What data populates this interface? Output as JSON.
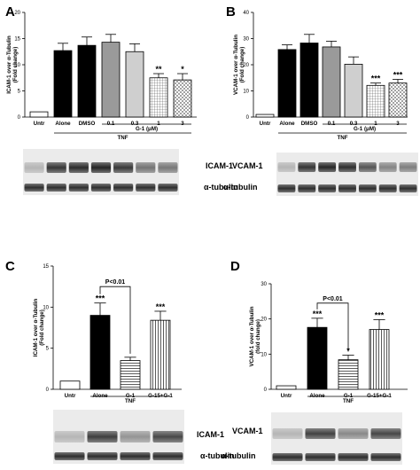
{
  "chart_data": [
    {
      "panel": "A",
      "type": "bar",
      "ylabel": "ICAM-1 over α-Tubulin (Fold change)",
      "ylim": [
        0,
        20
      ],
      "yticks": [
        0,
        5,
        10,
        15,
        20
      ],
      "categories": [
        "Untr",
        "Alone",
        "DMSO",
        "0.1",
        "0.3",
        "1",
        "3"
      ],
      "values": [
        1.0,
        12.7,
        13.7,
        14.3,
        12.5,
        7.5,
        7.1
      ],
      "errors": [
        0,
        1.4,
        1.6,
        1.5,
        1.5,
        0.8,
        1.2
      ],
      "fills": [
        "white",
        "black",
        "black",
        "gray",
        "lightgray",
        "hatch",
        "cross"
      ],
      "significance": [
        "",
        "",
        "",
        "",
        "",
        "**",
        "*"
      ],
      "brackets": [
        {
          "label": "G-1 (μM)",
          "from": 3,
          "to": 6,
          "row": 1
        },
        {
          "label": "TNF",
          "from": 1,
          "to": 6,
          "row": 2
        }
      ],
      "blot_labels": [
        "ICAM-1",
        "α-tubulin"
      ]
    },
    {
      "panel": "B",
      "type": "bar",
      "ylabel": "VCAM-1 over α-Tubulin (Fold change)",
      "ylim": [
        0,
        40
      ],
      "yticks": [
        0,
        10,
        20,
        30,
        40
      ],
      "categories": [
        "Untr",
        "Alone",
        "DMSO",
        "0.1",
        "0.3",
        "1",
        "3"
      ],
      "values": [
        1.0,
        25.8,
        28.3,
        26.8,
        20.2,
        12.1,
        13.0
      ],
      "errors": [
        0,
        1.8,
        3.3,
        2.2,
        2.8,
        0.9,
        1.4
      ],
      "fills": [
        "white",
        "black",
        "black",
        "gray",
        "lightgray",
        "hatch",
        "cross"
      ],
      "significance": [
        "",
        "",
        "",
        "",
        "",
        "***",
        "***"
      ],
      "brackets": [
        {
          "label": "G-1 (μM)",
          "from": 3,
          "to": 6,
          "row": 1
        },
        {
          "label": "TNF",
          "from": 1,
          "to": 6,
          "row": 2
        }
      ],
      "blot_labels": [
        "VCAM-1",
        "α-tubulin"
      ]
    },
    {
      "panel": "C",
      "type": "bar",
      "ylabel": "ICAM-1 over α-Tubulin (Fold change)",
      "ylim": [
        0,
        15
      ],
      "yticks": [
        0,
        5,
        10,
        15
      ],
      "categories": [
        "Untr",
        "Alone",
        "G-1",
        "G-15+G-1"
      ],
      "values": [
        1.0,
        9.0,
        3.5,
        8.4
      ],
      "errors": [
        0,
        1.5,
        0.4,
        1.1
      ],
      "fills": [
        "white",
        "black",
        "hlines",
        "vlines"
      ],
      "significance": [
        "",
        "***",
        "",
        "***"
      ],
      "comparison": {
        "label": "P<0.01",
        "from": 1,
        "to": 2,
        "value": 12.5
      },
      "brackets": [
        {
          "label": "TNF",
          "from": 1,
          "to": 3,
          "row": 1
        }
      ],
      "blot_labels": [
        "ICAM-1",
        "α-tubulin"
      ]
    },
    {
      "panel": "D",
      "type": "bar",
      "ylabel": "VCAM-1 over α-Tubulin (fold change)",
      "ylim": [
        0,
        30
      ],
      "yticks": [
        0,
        10,
        20,
        30
      ],
      "categories": [
        "Untr",
        "Alone",
        "G-1",
        "G-15+G-1"
      ],
      "values": [
        1.0,
        17.6,
        8.4,
        17.0
      ],
      "errors": [
        0,
        2.6,
        1.3,
        2.8
      ],
      "fills": [
        "white",
        "black",
        "hlines",
        "vlines"
      ],
      "significance": [
        "",
        "***",
        "*",
        "***"
      ],
      "comparison": {
        "label": "P<0.01",
        "from": 1,
        "to": 2,
        "value": 24.5
      },
      "brackets": [
        {
          "label": "TNF",
          "from": 1,
          "to": 3,
          "row": 1
        }
      ],
      "blot_labels": [
        "VCAM-1",
        "α-tubulin"
      ]
    }
  ]
}
